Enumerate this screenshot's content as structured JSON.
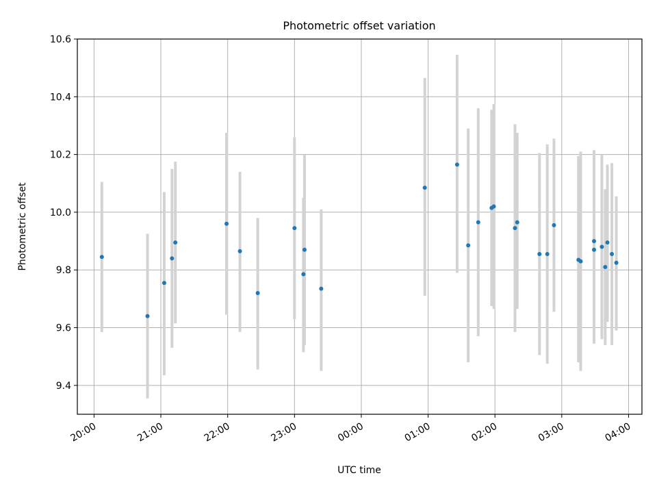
{
  "chart_data": {
    "type": "scatter",
    "title": "Photometric offset variation",
    "xlabel": "UTC time",
    "ylabel": "Photometric offset",
    "xlim": [
      "19:45",
      "04:12"
    ],
    "ylim": [
      9.3,
      10.6
    ],
    "grid": true,
    "x_ticks": [
      "20:00",
      "21:00",
      "22:00",
      "23:00",
      "00:00",
      "01:00",
      "02:00",
      "03:00",
      "04:00"
    ],
    "y_ticks": [
      "9.4",
      "9.6",
      "9.8",
      "10.0",
      "10.2",
      "10.4",
      "10.6"
    ],
    "colors": {
      "marker": "#1f77b4",
      "error_bar": "#d3d3d3",
      "grid": "#b0b0b0"
    },
    "series": [
      {
        "points": [
          {
            "t": "20:07",
            "y": 9.845,
            "lo": 9.585,
            "hi": 10.105
          },
          {
            "t": "20:48",
            "y": 9.64,
            "lo": 9.355,
            "hi": 9.925
          },
          {
            "t": "21:03",
            "y": 9.755,
            "lo": 9.435,
            "hi": 10.07
          },
          {
            "t": "21:10",
            "y": 9.84,
            "lo": 9.53,
            "hi": 10.15
          },
          {
            "t": "21:13",
            "y": 9.895,
            "lo": 9.615,
            "hi": 10.175
          },
          {
            "t": "21:59",
            "y": 9.96,
            "lo": 9.645,
            "hi": 10.275
          },
          {
            "t": "22:11",
            "y": 9.865,
            "lo": 9.585,
            "hi": 10.14
          },
          {
            "t": "22:27",
            "y": 9.72,
            "lo": 9.455,
            "hi": 9.98
          },
          {
            "t": "23:00",
            "y": 9.945,
            "lo": 9.63,
            "hi": 10.26
          },
          {
            "t": "23:08",
            "y": 9.785,
            "lo": 9.515,
            "hi": 10.05
          },
          {
            "t": "23:09",
            "y": 9.87,
            "lo": 9.54,
            "hi": 10.2
          },
          {
            "t": "23:24",
            "y": 9.735,
            "lo": 9.45,
            "hi": 10.01
          },
          {
            "t": "00:57",
            "y": 10.085,
            "lo": 9.71,
            "hi": 10.465
          },
          {
            "t": "01:26",
            "y": 10.165,
            "lo": 9.79,
            "hi": 10.545
          },
          {
            "t": "01:36",
            "y": 9.885,
            "lo": 9.48,
            "hi": 10.29
          },
          {
            "t": "01:45",
            "y": 9.965,
            "lo": 9.57,
            "hi": 10.36
          },
          {
            "t": "01:57",
            "y": 10.015,
            "lo": 9.675,
            "hi": 10.355
          },
          {
            "t": "01:59",
            "y": 10.02,
            "lo": 9.665,
            "hi": 10.375
          },
          {
            "t": "02:18",
            "y": 9.945,
            "lo": 9.585,
            "hi": 10.305
          },
          {
            "t": "02:20",
            "y": 9.965,
            "lo": 9.665,
            "hi": 10.275
          },
          {
            "t": "02:40",
            "y": 9.855,
            "lo": 9.505,
            "hi": 10.205
          },
          {
            "t": "02:47",
            "y": 9.855,
            "lo": 9.475,
            "hi": 10.235
          },
          {
            "t": "02:53",
            "y": 9.955,
            "lo": 9.655,
            "hi": 10.255
          },
          {
            "t": "03:15",
            "y": 9.835,
            "lo": 9.48,
            "hi": 10.195
          },
          {
            "t": "03:17",
            "y": 9.83,
            "lo": 9.45,
            "hi": 10.21
          },
          {
            "t": "03:29",
            "y": 9.9,
            "lo": 9.545,
            "hi": 10.215
          },
          {
            "t": "03:29",
            "y": 9.87,
            "lo": 9.545,
            "hi": 10.2
          },
          {
            "t": "03:36",
            "y": 9.88,
            "lo": 9.56,
            "hi": 10.2
          },
          {
            "t": "03:39",
            "y": 9.81,
            "lo": 9.54,
            "hi": 10.08
          },
          {
            "t": "03:41",
            "y": 9.895,
            "lo": 9.62,
            "hi": 10.165
          },
          {
            "t": "03:45",
            "y": 9.855,
            "lo": 9.54,
            "hi": 10.17
          },
          {
            "t": "03:49",
            "y": 9.825,
            "lo": 9.59,
            "hi": 10.055
          }
        ]
      }
    ]
  }
}
